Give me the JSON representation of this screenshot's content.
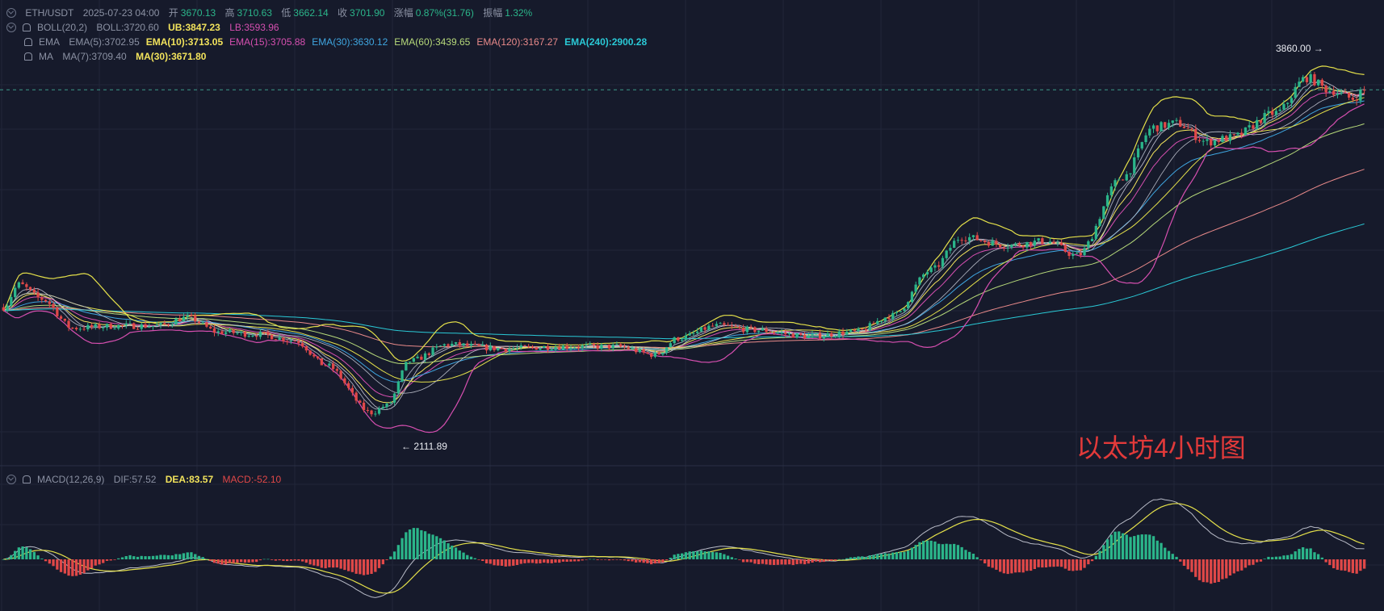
{
  "legend": {
    "symbol": "ETH/USDT",
    "datetime": "2025-07-23 04:00",
    "open_label": "开",
    "open_value": "3670.13",
    "high_label": "高",
    "high_value": "3710.63",
    "low_label": "低",
    "low_value": "3662.14",
    "close_label": "收",
    "close_value": "3701.90",
    "change_label": "涨幅",
    "change_value": "0.87%(31.76)",
    "amplitude_label": "振幅",
    "amplitude_value": "1.32%"
  },
  "boll": {
    "name": "BOLL(20,2)",
    "mid": "BOLL:3720.60",
    "ub": "UB:3847.23",
    "lb": "LB:3593.96"
  },
  "ema": {
    "name": "EMA",
    "items": [
      {
        "label": "EMA(5):3702.95",
        "color": "#9aa0b0"
      },
      {
        "label": "EMA(10):3713.05",
        "color": "#f2e35c"
      },
      {
        "label": "EMA(15):3705.88",
        "color": "#d64fb0"
      },
      {
        "label": "EMA(30):3630.12",
        "color": "#3fa6e0"
      },
      {
        "label": "EMA(60):3439.65",
        "color": "#b6d97a"
      },
      {
        "label": "EMA(120):3167.27",
        "color": "#e98a8a"
      },
      {
        "label": "EMA(240):2900.28",
        "color": "#2ac9d6"
      }
    ]
  },
  "ma": {
    "name": "MA",
    "ma7": "MA(7):3709.40",
    "ma30": "MA(30):3671.80"
  },
  "macd_legend": {
    "name": "MACD(12,26,9)",
    "dif": "DIF:57.52",
    "dea": "DEA:83.57",
    "macd": "MACD:-52.10"
  },
  "annotations": {
    "high": "3860.00",
    "low": "2111.89",
    "watermark": "以太坊4小时图"
  },
  "colors": {
    "up": "#2bb58a",
    "down": "#e04848",
    "background": "#161a2b",
    "boll": "#e4e04a",
    "dif": "#b9bcc8",
    "dea": "#e4e04a"
  },
  "chart_data": {
    "type": "candlestick",
    "timeframe": "4h",
    "ylim": [
      1950,
      3980
    ],
    "knots": [
      [
        0,
        2650
      ],
      [
        4,
        2760
      ],
      [
        10,
        2690
      ],
      [
        18,
        2550
      ],
      [
        30,
        2560
      ],
      [
        40,
        2560
      ],
      [
        48,
        2600
      ],
      [
        56,
        2530
      ],
      [
        66,
        2520
      ],
      [
        76,
        2490
      ],
      [
        84,
        2370
      ],
      [
        96,
        2140
      ],
      [
        100,
        2175
      ],
      [
        106,
        2390
      ],
      [
        116,
        2470
      ],
      [
        130,
        2450
      ],
      [
        146,
        2460
      ],
      [
        160,
        2460
      ],
      [
        170,
        2420
      ],
      [
        176,
        2500
      ],
      [
        186,
        2560
      ],
      [
        196,
        2540
      ],
      [
        210,
        2510
      ],
      [
        222,
        2530
      ],
      [
        232,
        2610
      ],
      [
        242,
        2830
      ],
      [
        250,
        2990
      ],
      [
        262,
        2950
      ],
      [
        272,
        2970
      ],
      [
        280,
        2900
      ],
      [
        292,
        3280
      ],
      [
        300,
        3520
      ],
      [
        306,
        3540
      ],
      [
        314,
        3450
      ],
      [
        320,
        3470
      ],
      [
        332,
        3590
      ],
      [
        340,
        3760
      ],
      [
        346,
        3700
      ],
      [
        352,
        3660
      ],
      [
        355,
        3700
      ]
    ],
    "indicators": {
      "boll_period": 20,
      "boll_k": 2,
      "ema_periods": [
        5,
        10,
        15,
        30,
        60,
        120,
        240
      ],
      "ma_periods": [
        7,
        30
      ]
    },
    "macd": {
      "params": [
        12,
        26,
        9
      ],
      "dif": 57.52,
      "dea": 83.57,
      "macd": -52.1
    }
  }
}
